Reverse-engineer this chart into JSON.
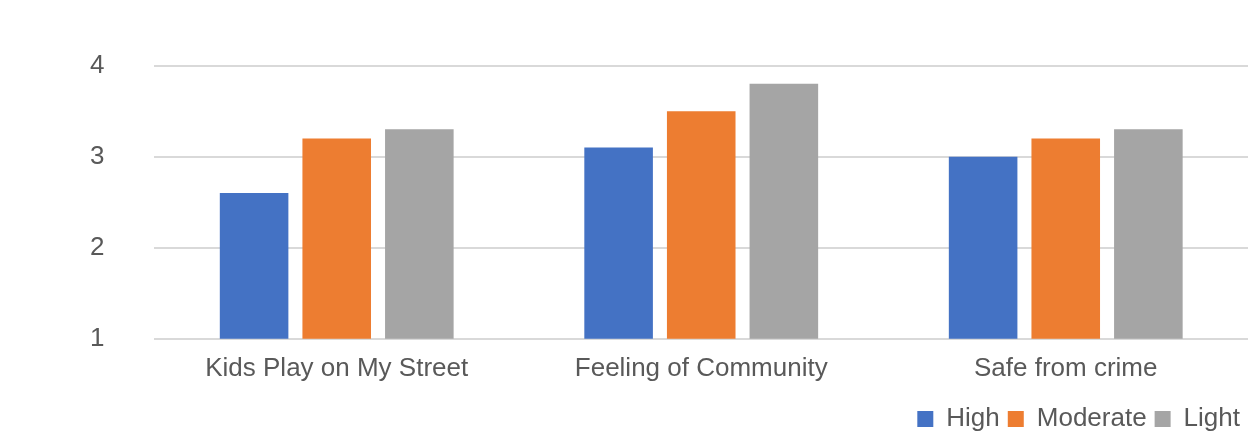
{
  "chart_data": {
    "type": "bar",
    "categories": [
      "Kids Play on My Street",
      "Feeling of Community",
      "Safe from crime"
    ],
    "series": [
      {
        "name": "High",
        "color": "#4472c4",
        "values": [
          2.6,
          3.1,
          3.0
        ]
      },
      {
        "name": "Moderate",
        "color": "#ed7d31",
        "values": [
          3.2,
          3.5,
          3.2
        ]
      },
      {
        "name": "Light",
        "color": "#a5a5a5",
        "values": [
          3.3,
          3.8,
          3.3
        ]
      }
    ],
    "ylim": [
      1,
      4
    ],
    "yticks": [
      1,
      2,
      3,
      4
    ],
    "grid": "y",
    "legend": "bottom right"
  }
}
